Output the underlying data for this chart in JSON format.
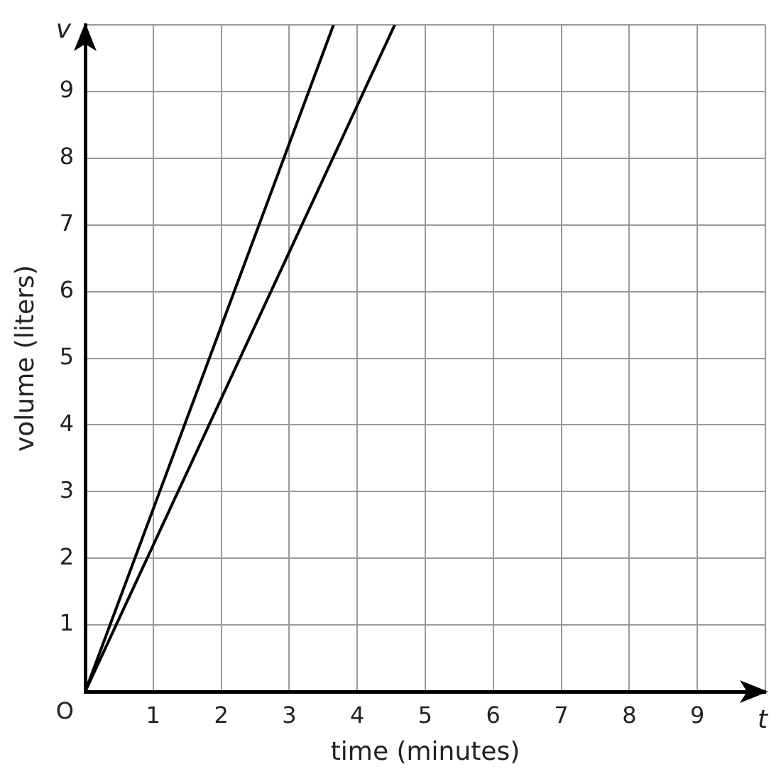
{
  "chart_data": {
    "type": "line",
    "xlabel": "time (minutes)",
    "ylabel": "volume (liters)",
    "annotations": [
      "v",
      "t",
      {
        "text": "O",
        "x": 0,
        "y": 0
      }
    ],
    "series": [
      {
        "color": "#000000",
        "x": [
          0,
          3.65
        ],
        "values": [
          0,
          10
        ]
      },
      {
        "color": "#000000",
        "x": [
          0,
          4.55
        ],
        "values": [
          0,
          10
        ]
      }
    ],
    "xlim": [
      0,
      10
    ],
    "ylim": [
      0,
      10
    ],
    "xticks": [
      {
        "value": 0,
        "label": null
      },
      1,
      2,
      3,
      4,
      5,
      6,
      7,
      8,
      9,
      {
        "value": 10,
        "label": null
      }
    ],
    "yticks": [
      {
        "value": 0,
        "label": null
      },
      1,
      2,
      3,
      4,
      5,
      6,
      7,
      8,
      9,
      {
        "value": 10,
        "label": null
      }
    ],
    "grid": true,
    "marker": "none"
  }
}
